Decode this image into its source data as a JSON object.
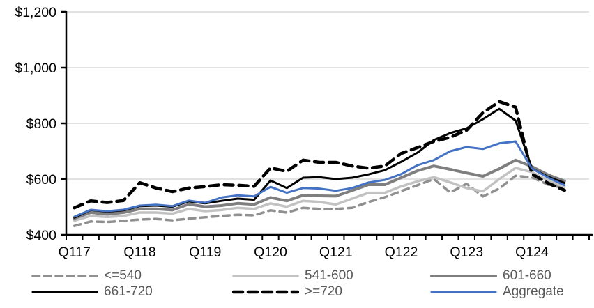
{
  "chart_data": {
    "type": "line",
    "title": "",
    "currency_prefix": "$",
    "ylim": [
      400,
      1200
    ],
    "y_tick_values": [
      400,
      600,
      800,
      1000,
      1200
    ],
    "y_tick_labels": [
      "$400",
      "$600",
      "$800",
      "$1,000",
      "$1,200"
    ],
    "x_tick_labels": [
      "Q117",
      "Q118",
      "Q119",
      "Q120",
      "Q121",
      "Q122",
      "Q123",
      "Q124"
    ],
    "x_quarters": [
      "Q117",
      "Q217",
      "Q317",
      "Q417",
      "Q118",
      "Q218",
      "Q318",
      "Q418",
      "Q119",
      "Q219",
      "Q319",
      "Q419",
      "Q120",
      "Q220",
      "Q320",
      "Q420",
      "Q121",
      "Q221",
      "Q321",
      "Q421",
      "Q122",
      "Q222",
      "Q322",
      "Q422",
      "Q123",
      "Q223",
      "Q323",
      "Q423",
      "Q124",
      "Q224",
      "Q324"
    ],
    "grid": "horizontal",
    "legend_position": "bottom",
    "legend_rows": 2,
    "legend_columns": 3,
    "series": [
      {
        "name": "<=540",
        "color": "#909090",
        "line_style": "dashed",
        "width": 3.5,
        "values": [
          432,
          448,
          446,
          450,
          455,
          457,
          452,
          458,
          463,
          468,
          472,
          470,
          488,
          480,
          497,
          493,
          493,
          497,
          518,
          535,
          557,
          578,
          600,
          552,
          583,
          538,
          566,
          612,
          606,
          580,
          567
        ]
      },
      {
        "name": "541-600",
        "color": "#C2C2C2",
        "line_style": "solid",
        "width": 3.5,
        "values": [
          451,
          468,
          464,
          468,
          480,
          480,
          476,
          493,
          485,
          489,
          497,
          493,
          513,
          501,
          522,
          518,
          509,
          530,
          551,
          551,
          574,
          592,
          607,
          588,
          568,
          556,
          600,
          640,
          625,
          595,
          572
        ]
      },
      {
        "name": "601-660",
        "color": "#7F7F7F",
        "line_style": "solid",
        "width": 4,
        "values": [
          459,
          480,
          474,
          480,
          493,
          493,
          489,
          510,
          501,
          505,
          513,
          509,
          534,
          522,
          542,
          540,
          539,
          559,
          580,
          580,
          605,
          630,
          647,
          635,
          622,
          610,
          637,
          668,
          645,
          615,
          593
        ]
      },
      {
        "name": "661-720",
        "color": "#000000",
        "line_style": "solid",
        "width": 3,
        "values": [
          462,
          489,
          483,
          488,
          503,
          505,
          501,
          520,
          513,
          522,
          530,
          526,
          595,
          568,
          605,
          607,
          600,
          605,
          617,
          632,
          662,
          695,
          740,
          765,
          782,
          815,
          852,
          810,
          638,
          608,
          586
        ]
      },
      {
        "name": ">=720",
        "color": "#000000",
        "line_style": "dashed-bold",
        "width": 4.5,
        "values": [
          497,
          522,
          516,
          523,
          587,
          568,
          555,
          568,
          573,
          580,
          578,
          574,
          640,
          628,
          668,
          660,
          660,
          647,
          639,
          647,
          692,
          713,
          735,
          750,
          775,
          838,
          878,
          858,
          618,
          585,
          560
        ]
      },
      {
        "name": "Aggregate",
        "color": "#4472C4",
        "line_style": "solid",
        "width": 3,
        "values": [
          465,
          490,
          485,
          490,
          505,
          508,
          503,
          523,
          515,
          534,
          542,
          538,
          572,
          551,
          568,
          566,
          558,
          568,
          588,
          597,
          618,
          650,
          668,
          700,
          715,
          708,
          728,
          735,
          638,
          605,
          578
        ]
      }
    ],
    "colors": {
      "background": "#FFFFFF",
      "gridline": "#D9D9D9",
      "axis": "#000000",
      "tick_label": "#000000",
      "legend_text": "#595959"
    }
  }
}
